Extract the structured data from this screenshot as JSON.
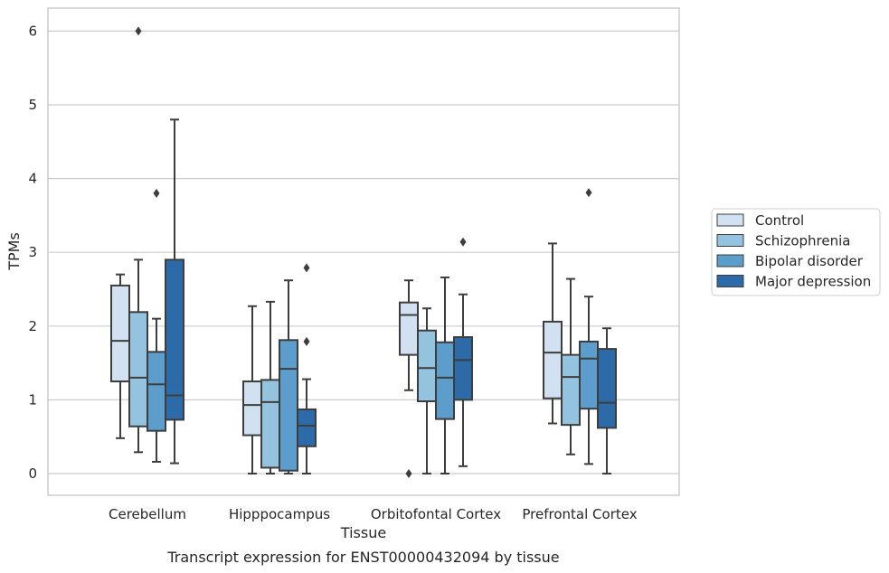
{
  "chart_data": {
    "type": "boxplot",
    "title": "",
    "caption": "Transcript expression for ENST00000432094 by tissue",
    "xlabel": "Tissue",
    "ylabel": "TPMs",
    "ylim": [
      -0.3,
      6.3
    ],
    "yticks": [
      0,
      1,
      2,
      3,
      4,
      5,
      6
    ],
    "grid": "horizontal",
    "legend_position": "right",
    "categories": [
      "Cerebellum",
      "Hipppocampus",
      "Orbitofontal Cortex",
      "Prefrontal Cortex"
    ],
    "series": [
      {
        "name": "Control",
        "color": "#d1e1f1",
        "boxes": [
          {
            "whislo": 0.48,
            "q1": 1.25,
            "med": 1.8,
            "q3": 2.55,
            "whishi": 2.7,
            "fliers": []
          },
          {
            "whislo": 0.0,
            "q1": 0.52,
            "med": 0.93,
            "q3": 1.25,
            "whishi": 2.27,
            "fliers": []
          },
          {
            "whislo": 1.13,
            "q1": 1.61,
            "med": 2.15,
            "q3": 2.32,
            "whishi": 2.62,
            "fliers": [
              0.0
            ]
          },
          {
            "whislo": 0.68,
            "q1": 1.02,
            "med": 1.64,
            "q3": 2.06,
            "whishi": 3.12,
            "fliers": []
          }
        ]
      },
      {
        "name": "Schizophrenia",
        "color": "#94c3df",
        "boxes": [
          {
            "whislo": 0.29,
            "q1": 0.64,
            "med": 1.3,
            "q3": 2.19,
            "whishi": 2.9,
            "fliers": [
              6.0
            ]
          },
          {
            "whislo": 0.0,
            "q1": 0.08,
            "med": 0.97,
            "q3": 1.27,
            "whishi": 2.33,
            "fliers": []
          },
          {
            "whislo": 0.0,
            "q1": 0.98,
            "med": 1.43,
            "q3": 1.94,
            "whishi": 2.24,
            "fliers": []
          },
          {
            "whislo": 0.26,
            "q1": 0.66,
            "med": 1.31,
            "q3": 1.61,
            "whishi": 2.64,
            "fliers": []
          }
        ]
      },
      {
        "name": "Bipolar disorder",
        "color": "#5d9dcb",
        "boxes": [
          {
            "whislo": 0.16,
            "q1": 0.58,
            "med": 1.21,
            "q3": 1.65,
            "whishi": 2.1,
            "fliers": [
              3.8
            ]
          },
          {
            "whislo": 0.0,
            "q1": 0.04,
            "med": 1.42,
            "q3": 1.81,
            "whishi": 2.62,
            "fliers": []
          },
          {
            "whislo": 0.0,
            "q1": 0.74,
            "med": 1.3,
            "q3": 1.78,
            "whishi": 2.66,
            "fliers": []
          },
          {
            "whislo": 0.13,
            "q1": 0.88,
            "med": 1.56,
            "q3": 1.79,
            "whishi": 2.4,
            "fliers": [
              3.81
            ]
          }
        ]
      },
      {
        "name": "Major depression",
        "color": "#2d6ba8",
        "boxes": [
          {
            "whislo": 0.14,
            "q1": 0.73,
            "med": 1.06,
            "q3": 2.9,
            "whishi": 4.8,
            "fliers": []
          },
          {
            "whislo": 0.0,
            "q1": 0.37,
            "med": 0.65,
            "q3": 0.87,
            "whishi": 1.28,
            "fliers": [
              1.79,
              2.79
            ]
          },
          {
            "whislo": 0.1,
            "q1": 1.0,
            "med": 1.54,
            "q3": 1.85,
            "whishi": 2.43,
            "fliers": [
              3.14
            ]
          },
          {
            "whislo": 0.0,
            "q1": 0.62,
            "med": 0.96,
            "q3": 1.69,
            "whishi": 1.97,
            "fliers": []
          }
        ]
      }
    ]
  }
}
